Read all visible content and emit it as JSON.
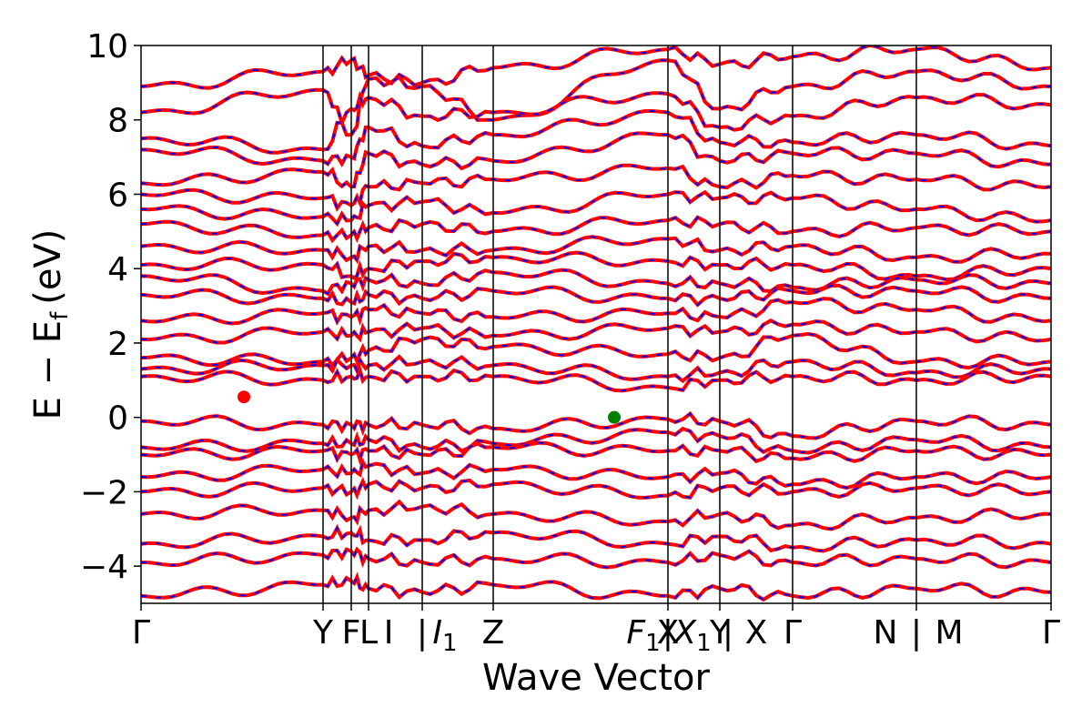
{
  "chart_data": {
    "type": "line",
    "title": "",
    "xlabel": "Wave Vector",
    "ylabel": {
      "main": "E − E",
      "sub": "f",
      "unit": "(eV)"
    },
    "ylim": [
      -5,
      10
    ],
    "yticks": [
      10,
      8,
      6,
      4,
      2,
      0,
      -2,
      -4
    ],
    "ytick_labels": [
      "10",
      "8",
      "6",
      "4",
      "2",
      "0",
      "−2",
      "−4"
    ],
    "xlim": [
      0,
      1
    ],
    "kpoint_positions": [
      0.0,
      0.2,
      0.231,
      0.25,
      0.309,
      0.387,
      0.579,
      0.636,
      0.716,
      0.852,
      1.0
    ],
    "kpoint_labels": [
      {
        "x": 0.0,
        "text": "Γ"
      },
      {
        "x": 0.2,
        "text": "Y"
      },
      {
        "x": 0.231,
        "text": "F"
      },
      {
        "x": 0.25,
        "text": "L"
      },
      {
        "x": 0.272,
        "text": "I"
      },
      {
        "x": 0.309,
        "text": "|"
      },
      {
        "x": 0.334,
        "text": "I",
        "sub": "1",
        "italic": true
      },
      {
        "x": 0.387,
        "text": "Z"
      },
      {
        "x": 0.552,
        "text": "F",
        "sub": "1",
        "italic": true
      },
      {
        "x": 0.579,
        "text": "|"
      },
      {
        "x": 0.606,
        "text": "X",
        "sub": "1",
        "italic": true
      },
      {
        "x": 0.579,
        "text": "X"
      },
      {
        "x": 0.636,
        "text": "Y"
      },
      {
        "x": 0.645,
        "text": "|"
      },
      {
        "x": 0.676,
        "text": "X"
      },
      {
        "x": 0.716,
        "text": "Γ"
      },
      {
        "x": 0.818,
        "text": "N"
      },
      {
        "x": 0.852,
        "text": "|"
      },
      {
        "x": 0.888,
        "text": "M"
      },
      {
        "x": 1.0,
        "text": "Γ"
      }
    ],
    "series": [
      {
        "name": "",
        "color": "#ff0000",
        "style": "solid"
      },
      {
        "name": "",
        "color": "#0000ff",
        "style": "dashed"
      }
    ],
    "bands": [
      [
        8.9,
        9.3,
        9.6,
        9.2,
        9.0,
        9.4,
        9.9,
        9.5,
        9.7,
        9.9,
        9.4
      ],
      [
        8.2,
        8.8,
        7.6,
        9.1,
        8.9,
        8.0,
        9.6,
        8.3,
        8.9,
        9.3,
        8.9
      ],
      [
        7.5,
        7.2,
        8.3,
        8.6,
        8.1,
        8.2,
        8.7,
        7.8,
        8.1,
        8.6,
        8.4
      ],
      [
        7.2,
        6.9,
        7.0,
        7.8,
        7.3,
        7.6,
        8.2,
        7.4,
        7.4,
        7.6,
        7.3
      ],
      [
        6.3,
        6.6,
        6.2,
        7.1,
        6.8,
        6.9,
        7.6,
        6.9,
        7.1,
        7.1,
        6.8
      ],
      [
        6.0,
        5.9,
        5.7,
        6.2,
        6.3,
        6.4,
        6.7,
        6.2,
        6.5,
        6.4,
        6.2
      ],
      [
        5.6,
        5.4,
        5.3,
        5.7,
        5.8,
        5.5,
        6.0,
        5.9,
        5.9,
        5.6,
        5.3
      ],
      [
        5.2,
        4.9,
        4.9,
        5.1,
        5.2,
        5.0,
        5.3,
        5.2,
        5.0,
        5.1,
        5.0
      ],
      [
        4.6,
        4.5,
        4.3,
        4.6,
        4.5,
        4.5,
        4.8,
        4.5,
        4.6,
        4.3,
        4.4
      ],
      [
        4.1,
        4.1,
        3.8,
        4.0,
        4.2,
        4.3,
        4.2,
        4.1,
        4.1,
        3.8,
        4.0
      ],
      [
        3.8,
        3.4,
        3.6,
        3.7,
        3.6,
        3.9,
        3.6,
        3.6,
        3.5,
        3.7,
        3.6
      ],
      [
        3.3,
        3.2,
        3.1,
        3.3,
        3.2,
        3.4,
        3.2,
        3.2,
        3.4,
        3.4,
        3.2
      ],
      [
        2.6,
        2.8,
        2.7,
        2.9,
        2.8,
        2.7,
        2.8,
        2.7,
        3.1,
        2.9,
        2.6
      ],
      [
        2.1,
        2.3,
        2.2,
        2.3,
        2.4,
        2.2,
        2.4,
        2.3,
        2.5,
        2.3,
        2.1
      ],
      [
        1.6,
        1.5,
        1.6,
        1.8,
        2.1,
        1.9,
        1.7,
        1.6,
        2.2,
        1.5,
        1.5
      ],
      [
        1.3,
        1.4,
        1.4,
        1.4,
        1.5,
        1.4,
        1.1,
        1.2,
        1.5,
        1.2,
        1.3
      ],
      [
        1.1,
        1.0,
        1.1,
        1.1,
        1.1,
        1.1,
        0.8,
        1.0,
        1.1,
        1.0,
        1.1
      ],
      [
        -0.1,
        -0.2,
        -0.2,
        -0.2,
        -0.2,
        -0.3,
        -0.05,
        -0.1,
        -0.5,
        -0.1,
        -0.2
      ],
      [
        -0.8,
        -0.7,
        -0.7,
        -0.6,
        -0.8,
        -0.7,
        -0.4,
        -0.5,
        -0.9,
        -0.6,
        -0.8
      ],
      [
        -1.0,
        -0.9,
        -1.0,
        -0.9,
        -1.0,
        -0.8,
        -0.9,
        -0.9,
        -1.1,
        -0.9,
        -1.0
      ],
      [
        -1.6,
        -1.4,
        -1.5,
        -1.3,
        -1.5,
        -1.4,
        -1.6,
        -1.5,
        -1.8,
        -1.6,
        -1.6
      ],
      [
        -2.0,
        -1.9,
        -2.0,
        -1.8,
        -1.9,
        -1.8,
        -2.1,
        -1.9,
        -2.0,
        -1.9,
        -2.0
      ],
      [
        -2.6,
        -2.5,
        -2.7,
        -2.5,
        -2.4,
        -2.6,
        -2.8,
        -2.6,
        -2.9,
        -2.7,
        -2.6
      ],
      [
        -3.4,
        -3.2,
        -3.1,
        -3.3,
        -3.3,
        -3.1,
        -3.4,
        -3.2,
        -3.5,
        -3.3,
        -3.4
      ],
      [
        -3.9,
        -3.7,
        -3.6,
        -3.8,
        -3.9,
        -3.8,
        -3.9,
        -3.7,
        -3.9,
        -3.8,
        -3.9
      ],
      [
        -4.8,
        -4.5,
        -4.4,
        -4.6,
        -4.7,
        -4.5,
        -4.8,
        -4.6,
        -4.8,
        -4.6,
        -4.7
      ]
    ],
    "markers": [
      {
        "x": 0.113,
        "y": 0.55,
        "color": "#ff0000"
      },
      {
        "x": 0.52,
        "y": 0.0,
        "color": "#008000"
      }
    ],
    "grid": false,
    "legend": "none"
  }
}
